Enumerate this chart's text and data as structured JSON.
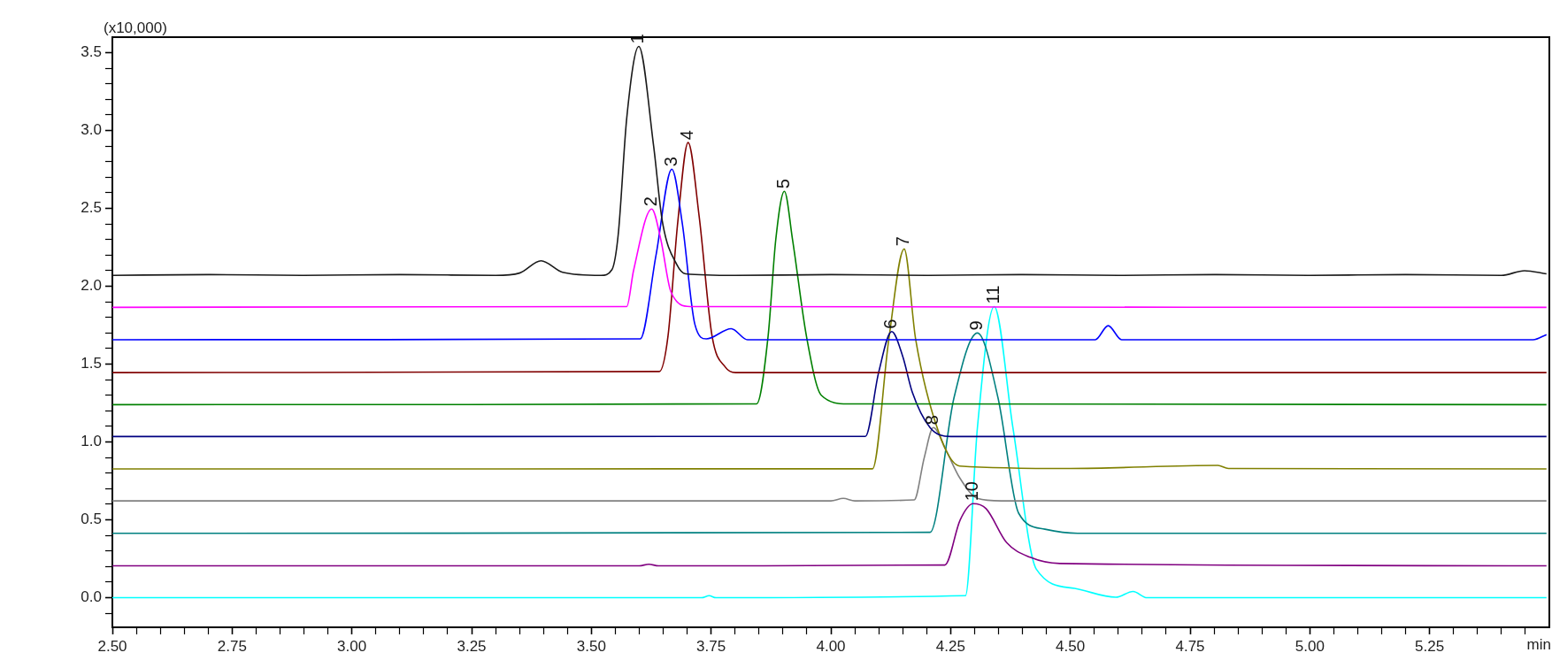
{
  "chart_data": {
    "type": "line",
    "ylabel": "(x10,000)",
    "xlabel": "min",
    "marker": "none",
    "line_style": "solid",
    "grid": false,
    "legend": false,
    "xlim": [
      2.5,
      5.5
    ],
    "ylim": [
      -0.19,
      3.6
    ],
    "xticks": [
      {
        "value": 2.5,
        "label": "2.50"
      },
      {
        "value": 2.55,
        "label": null
      },
      {
        "value": 2.6,
        "label": null
      },
      {
        "value": 2.65,
        "label": null
      },
      {
        "value": 2.7,
        "label": null
      },
      {
        "value": 2.75,
        "label": "2.75"
      },
      {
        "value": 2.8,
        "label": null
      },
      {
        "value": 2.85,
        "label": null
      },
      {
        "value": 2.9,
        "label": null
      },
      {
        "value": 2.95,
        "label": null
      },
      {
        "value": 3.0,
        "label": "3.00"
      },
      {
        "value": 3.05,
        "label": null
      },
      {
        "value": 3.1,
        "label": null
      },
      {
        "value": 3.15,
        "label": null
      },
      {
        "value": 3.2,
        "label": null
      },
      {
        "value": 3.25,
        "label": "3.25"
      },
      {
        "value": 3.3,
        "label": null
      },
      {
        "value": 3.35,
        "label": null
      },
      {
        "value": 3.4,
        "label": null
      },
      {
        "value": 3.45,
        "label": null
      },
      {
        "value": 3.5,
        "label": "3.50"
      },
      {
        "value": 3.55,
        "label": null
      },
      {
        "value": 3.6,
        "label": null
      },
      {
        "value": 3.65,
        "label": null
      },
      {
        "value": 3.7,
        "label": null
      },
      {
        "value": 3.75,
        "label": "3.75"
      },
      {
        "value": 3.8,
        "label": null
      },
      {
        "value": 3.85,
        "label": null
      },
      {
        "value": 3.9,
        "label": null
      },
      {
        "value": 3.95,
        "label": null
      },
      {
        "value": 4.0,
        "label": "4.00"
      },
      {
        "value": 4.05,
        "label": null
      },
      {
        "value": 4.1,
        "label": null
      },
      {
        "value": 4.15,
        "label": null
      },
      {
        "value": 4.2,
        "label": null
      },
      {
        "value": 4.25,
        "label": "4.25"
      },
      {
        "value": 4.3,
        "label": null
      },
      {
        "value": 4.35,
        "label": null
      },
      {
        "value": 4.4,
        "label": null
      },
      {
        "value": 4.45,
        "label": null
      },
      {
        "value": 4.5,
        "label": "4.50"
      },
      {
        "value": 4.55,
        "label": null
      },
      {
        "value": 4.6,
        "label": null
      },
      {
        "value": 4.65,
        "label": null
      },
      {
        "value": 4.7,
        "label": null
      },
      {
        "value": 4.75,
        "label": "4.75"
      },
      {
        "value": 4.8,
        "label": null
      },
      {
        "value": 4.85,
        "label": null
      },
      {
        "value": 4.9,
        "label": null
      },
      {
        "value": 4.95,
        "label": null
      },
      {
        "value": 5.0,
        "label": "5.00"
      },
      {
        "value": 5.05,
        "label": null
      },
      {
        "value": 5.1,
        "label": null
      },
      {
        "value": 5.15,
        "label": null
      },
      {
        "value": 5.2,
        "label": null
      },
      {
        "value": 5.25,
        "label": "5.25"
      },
      {
        "value": 5.3,
        "label": null
      },
      {
        "value": 5.35,
        "label": null
      },
      {
        "value": 5.4,
        "label": null
      },
      {
        "value": 5.45,
        "label": null
      }
    ],
    "yticks": [
      {
        "value": -0.1,
        "label": null
      },
      {
        "value": 0,
        "label": "0.0"
      },
      {
        "value": 0.1,
        "label": null
      },
      {
        "value": 0.2,
        "label": null
      },
      {
        "value": 0.3,
        "label": null
      },
      {
        "value": 0.4,
        "label": null
      },
      {
        "value": 0.5,
        "label": "0.5"
      },
      {
        "value": 0.6,
        "label": null
      },
      {
        "value": 0.7,
        "label": null
      },
      {
        "value": 0.8,
        "label": null
      },
      {
        "value": 0.9,
        "label": null
      },
      {
        "value": 1.0,
        "label": "1.0"
      },
      {
        "value": 1.1,
        "label": null
      },
      {
        "value": 1.2,
        "label": null
      },
      {
        "value": 1.3,
        "label": null
      },
      {
        "value": 1.4,
        "label": null
      },
      {
        "value": 1.5,
        "label": "1.5"
      },
      {
        "value": 1.6,
        "label": null
      },
      {
        "value": 1.7,
        "label": null
      },
      {
        "value": 1.8,
        "label": null
      },
      {
        "value": 1.9,
        "label": null
      },
      {
        "value": 2.0,
        "label": "2.0"
      },
      {
        "value": 2.1,
        "label": null
      },
      {
        "value": 2.2,
        "label": null
      },
      {
        "value": 2.3,
        "label": null
      },
      {
        "value": 2.4,
        "label": null
      },
      {
        "value": 2.5,
        "label": "2.5"
      },
      {
        "value": 2.6,
        "label": null
      },
      {
        "value": 2.7,
        "label": null
      },
      {
        "value": 2.8,
        "label": null
      },
      {
        "value": 2.9,
        "label": null
      },
      {
        "value": 3.0,
        "label": "3.0"
      },
      {
        "value": 3.1,
        "label": null
      },
      {
        "value": 3.2,
        "label": null
      },
      {
        "value": 3.3,
        "label": null
      },
      {
        "value": 3.4,
        "label": null
      },
      {
        "value": 3.5,
        "label": "3.5"
      }
    ],
    "series": [
      {
        "color": "#1a1a1a",
        "x": [
          2.5,
          2.7,
          2.9,
          3.1,
          3.3,
          3.35,
          3.395,
          3.44,
          3.52,
          3.543,
          3.556,
          3.574,
          3.599,
          3.63,
          3.648,
          3.679,
          3.697,
          3.8,
          4.0,
          4.2,
          4.4,
          4.6,
          4.8,
          5.0,
          5.2,
          5.4,
          5.448,
          5.494
        ],
        "values": [
          2.07,
          2.075,
          2.07,
          2.075,
          2.07,
          2.085,
          2.164,
          2.09,
          2.07,
          2.107,
          2.33,
          3.085,
          3.54,
          2.9,
          2.42,
          2.136,
          2.08,
          2.07,
          2.075,
          2.07,
          2.075,
          2.07,
          2.075,
          2.07,
          2.075,
          2.07,
          2.1,
          2.08
        ]
      },
      {
        "color": "#ff00ff",
        "x": [
          2.5,
          3.574,
          3.588,
          3.626,
          3.645,
          3.666,
          3.706,
          5.494
        ],
        "values": [
          1.865,
          1.87,
          2.1,
          2.496,
          2.3,
          1.965,
          1.87,
          1.865
        ]
      },
      {
        "color": "#0000ff",
        "x": [
          2.5,
          3.602,
          3.635,
          3.668,
          3.69,
          3.716,
          3.74,
          3.792,
          3.826,
          4.552,
          4.579,
          4.607,
          5.466,
          5.494
        ],
        "values": [
          1.657,
          1.662,
          2.2,
          2.752,
          2.4,
          1.757,
          1.662,
          1.728,
          1.657,
          1.657,
          1.747,
          1.657,
          1.657,
          1.69
        ]
      },
      {
        "color": "#800000",
        "x": [
          2.5,
          3.642,
          3.66,
          3.68,
          3.702,
          3.725,
          3.752,
          3.78,
          3.801,
          5.494
        ],
        "values": [
          1.446,
          1.453,
          1.68,
          2.4,
          2.923,
          2.45,
          1.68,
          1.48,
          1.446,
          1.446
        ]
      },
      {
        "color": "#008000",
        "x": [
          2.5,
          3.845,
          3.869,
          3.885,
          3.903,
          3.92,
          3.949,
          3.98,
          4.035,
          5.494
        ],
        "values": [
          1.24,
          1.245,
          1.68,
          2.3,
          2.61,
          2.3,
          1.68,
          1.3,
          1.245,
          1.24
        ]
      },
      {
        "color": "#000080",
        "x": [
          2.5,
          4.072,
          4.1,
          4.127,
          4.15,
          4.17,
          4.207,
          4.25,
          5.494
        ],
        "values": [
          1.035,
          1.036,
          1.45,
          1.709,
          1.55,
          1.32,
          1.093,
          1.035,
          1.035
        ]
      },
      {
        "color": "#808000",
        "x": [
          2.5,
          4.087,
          4.121,
          4.153,
          4.177,
          4.226,
          4.269,
          4.5,
          4.808,
          4.83,
          5.494
        ],
        "values": [
          0.827,
          0.828,
          1.66,
          2.24,
          1.66,
          1.055,
          0.846,
          0.83,
          0.85,
          0.83,
          0.827
        ]
      },
      {
        "color": "#808080",
        "x": [
          2.5,
          4.0,
          4.026,
          4.05,
          4.174,
          4.195,
          4.214,
          4.24,
          4.269,
          4.306,
          4.356,
          5.494
        ],
        "values": [
          0.622,
          0.622,
          0.638,
          0.622,
          0.628,
          0.9,
          1.093,
          0.95,
          0.77,
          0.638,
          0.622,
          0.622
        ]
      },
      {
        "color": "#008080",
        "x": [
          2.5,
          4.207,
          4.257,
          4.306,
          4.349,
          4.392,
          4.447,
          4.515,
          5.494
        ],
        "values": [
          0.414,
          0.42,
          1.283,
          1.7,
          1.283,
          0.543,
          0.44,
          0.414,
          0.414
        ]
      },
      {
        "color": "#800080",
        "x": [
          2.5,
          3.6,
          3.62,
          3.64,
          4.238,
          4.27,
          4.297,
          4.324,
          4.367,
          4.416,
          4.478,
          5.494
        ],
        "values": [
          0.205,
          0.205,
          0.215,
          0.205,
          0.21,
          0.5,
          0.604,
          0.572,
          0.354,
          0.26,
          0.22,
          0.205
        ]
      },
      {
        "color": "#00ffff",
        "x": [
          2.5,
          3.73,
          3.746,
          3.76,
          4.281,
          4.306,
          4.341,
          4.38,
          4.429,
          4.509,
          4.595,
          4.631,
          4.66,
          5.494
        ],
        "values": [
          0,
          0,
          0.013,
          0,
          0.013,
          1.093,
          1.87,
          1.093,
          0.183,
          0.06,
          0.003,
          0.04,
          0,
          0
        ]
      }
    ],
    "annotations": [
      {
        "text": "1",
        "x": 3.599,
        "y": 3.54
      },
      {
        "text": "2",
        "x": 3.626,
        "y": 2.496
      },
      {
        "text": "3",
        "x": 3.668,
        "y": 2.752
      },
      {
        "text": "4",
        "x": 3.702,
        "y": 2.923
      },
      {
        "text": "5",
        "x": 3.903,
        "y": 2.61
      },
      {
        "text": "6",
        "x": 4.127,
        "y": 1.709
      },
      {
        "text": "7",
        "x": 4.153,
        "y": 2.24
      },
      {
        "text": "8",
        "x": 4.214,
        "y": 1.093
      },
      {
        "text": "9",
        "x": 4.306,
        "y": 1.7
      },
      {
        "text": "10",
        "x": 4.297,
        "y": 0.604
      },
      {
        "text": "11",
        "x": 4.341,
        "y": 1.87
      }
    ]
  }
}
